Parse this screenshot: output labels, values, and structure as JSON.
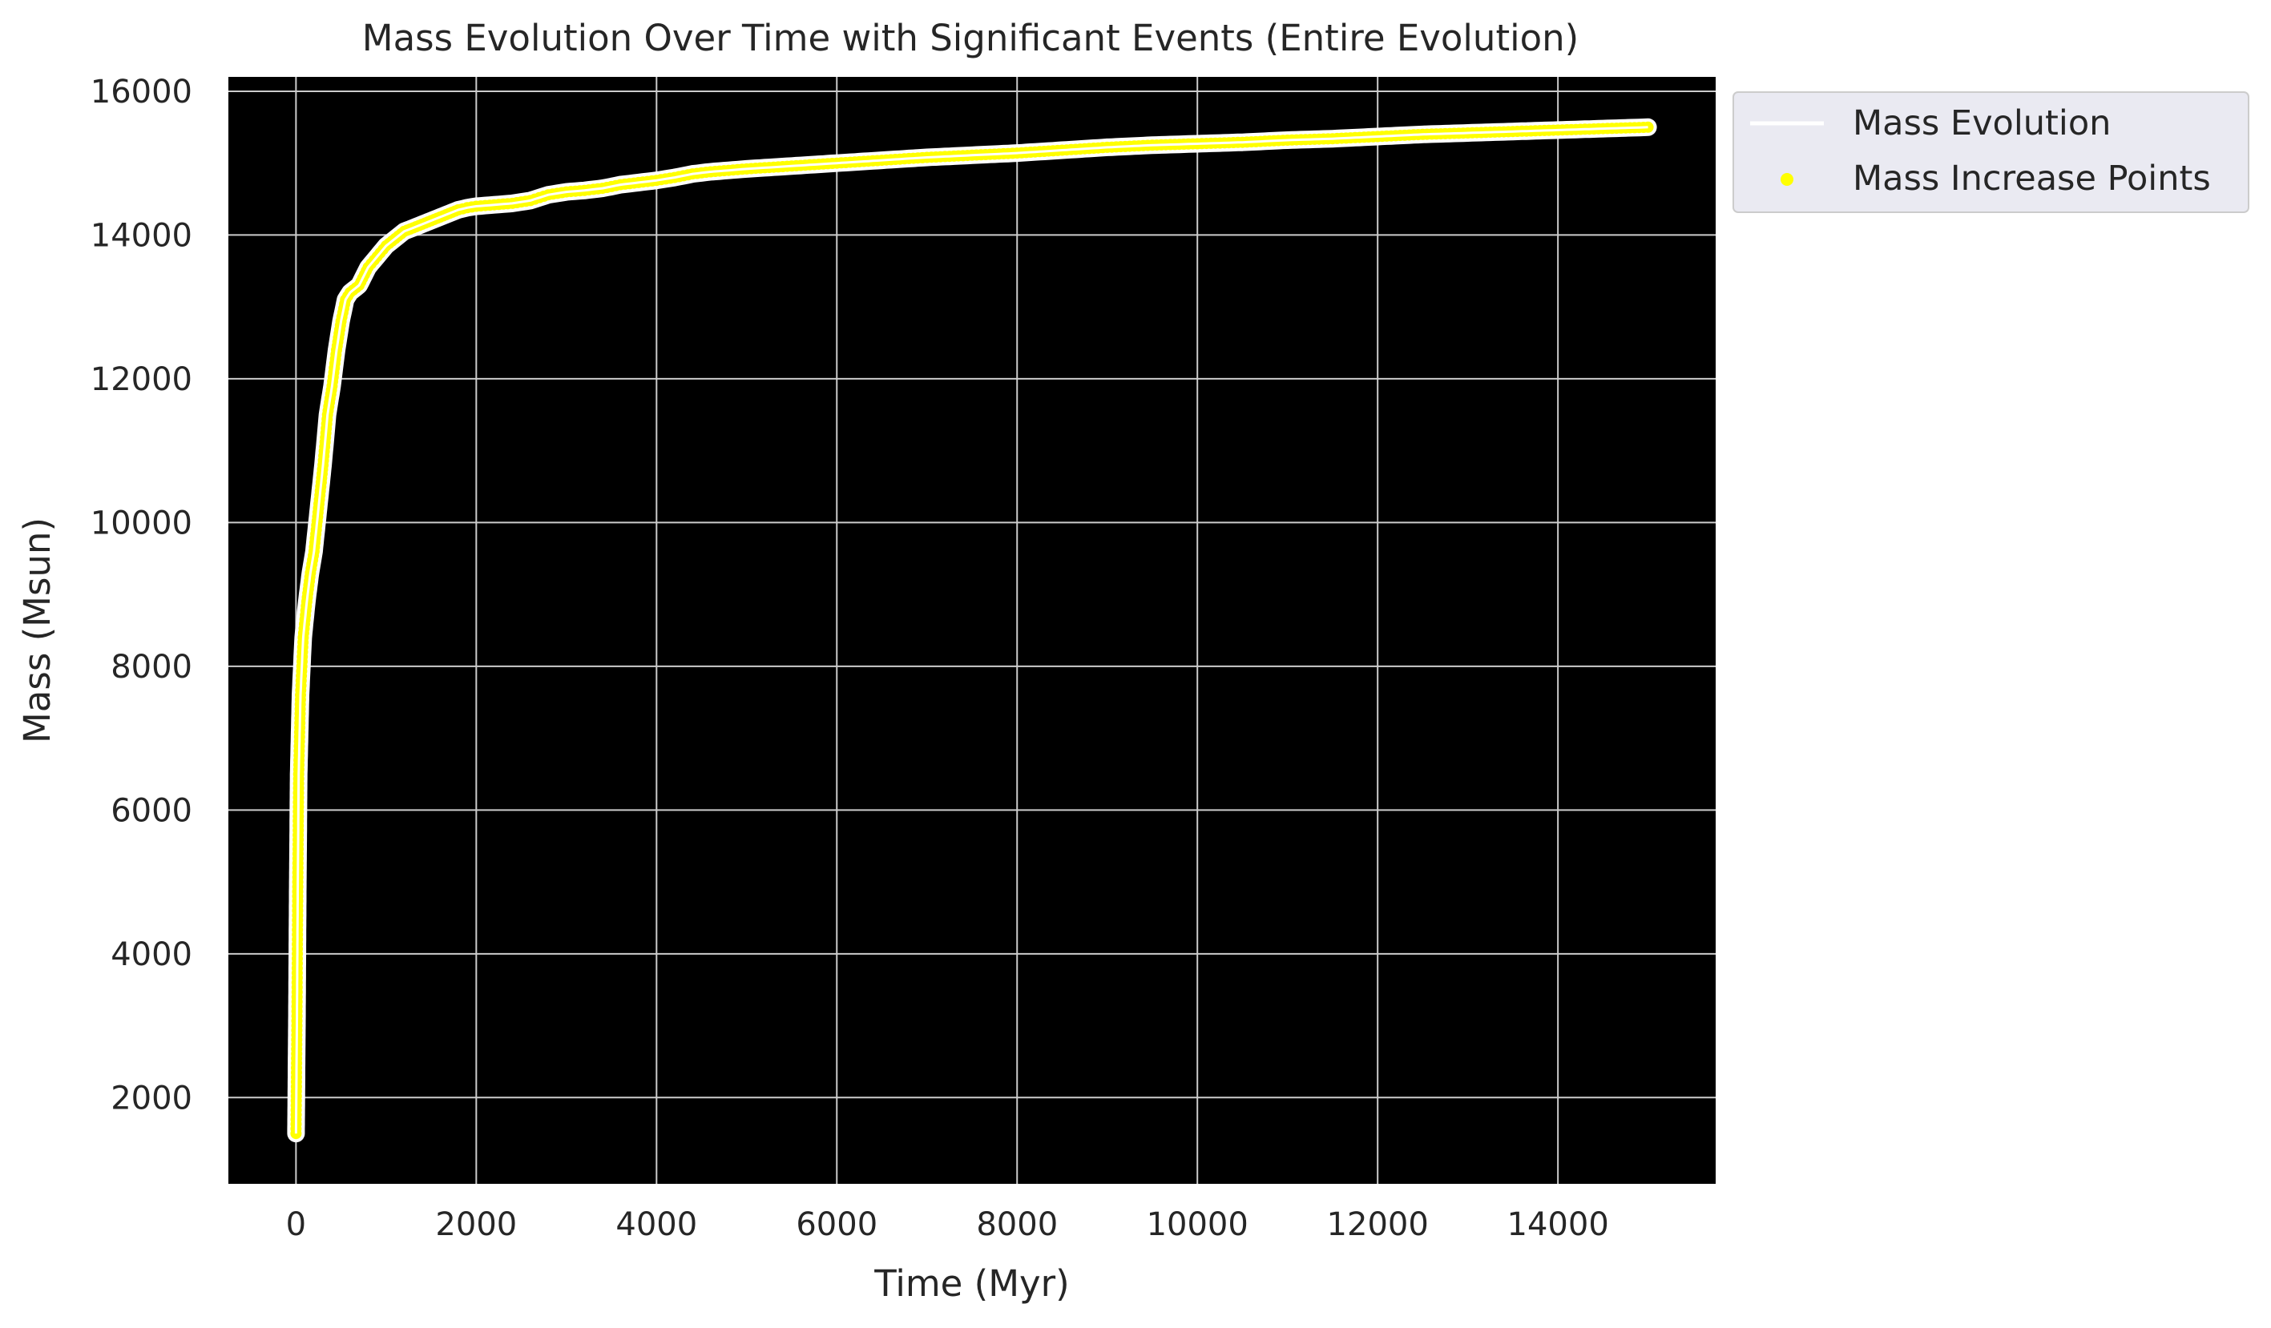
{
  "chart_data": {
    "type": "line",
    "title": "Mass Evolution Over Time with Significant Events (Entire Evolution)",
    "xlabel": "Time (Myr)",
    "ylabel": "Mass (Msun)",
    "xlim": [
      -750,
      15750
    ],
    "ylim": [
      800,
      16200
    ],
    "xticks": [
      0,
      2000,
      4000,
      6000,
      8000,
      10000,
      12000,
      14000
    ],
    "yticks": [
      2000,
      4000,
      6000,
      8000,
      10000,
      12000,
      14000,
      16000
    ],
    "grid": true,
    "legend_position": "outside upper-right",
    "colors": {
      "plot_background": "#000000",
      "grid": "#cccccc",
      "line": "#ffffff",
      "points": "#ffff00"
    },
    "series": [
      {
        "name": "Mass Evolution",
        "kind": "line",
        "x": [
          0,
          10,
          20,
          30,
          50,
          80,
          120,
          160,
          200,
          250,
          300,
          350,
          400,
          450,
          500,
          550,
          600,
          700,
          800,
          900,
          1000,
          1100,
          1200,
          1300,
          1400,
          1500,
          1600,
          1700,
          1800,
          1900,
          2000,
          2200,
          2400,
          2600,
          2800,
          3000,
          3200,
          3400,
          3600,
          3800,
          4000,
          4200,
          4400,
          4600,
          5000,
          5500,
          6000,
          6500,
          7000,
          7500,
          8000,
          8500,
          9000,
          9500,
          10000,
          10500,
          11000,
          11500,
          12000,
          12500,
          13000,
          13500,
          14000,
          14500,
          15000
        ],
        "y": [
          1500,
          3000,
          5000,
          6500,
          7600,
          8400,
          8900,
          9300,
          9600,
          10200,
          10800,
          11500,
          11900,
          12400,
          12800,
          13100,
          13200,
          13300,
          13550,
          13700,
          13850,
          13950,
          14050,
          14100,
          14150,
          14200,
          14250,
          14300,
          14350,
          14380,
          14400,
          14420,
          14440,
          14480,
          14560,
          14600,
          14620,
          14650,
          14700,
          14730,
          14760,
          14800,
          14850,
          14880,
          14920,
          14960,
          15000,
          15040,
          15080,
          15110,
          15140,
          15180,
          15220,
          15250,
          15270,
          15290,
          15320,
          15340,
          15370,
          15400,
          15420,
          15440,
          15460,
          15480,
          15500
        ]
      },
      {
        "name": "Mass Increase Points",
        "kind": "scatter",
        "same_x_y_as": "Mass Evolution"
      }
    ]
  }
}
